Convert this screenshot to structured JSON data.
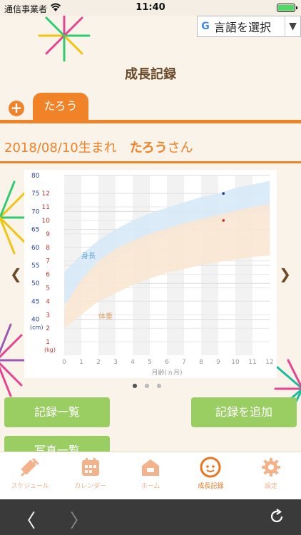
{
  "status": {
    "carrier": "通信事業者",
    "time": "11:40"
  },
  "translate": {
    "label": "言語を選択"
  },
  "page": {
    "title": "成長記録"
  },
  "tabs": {
    "child_tab": "たろう"
  },
  "child": {
    "birth_text": "2018/08/10生まれ",
    "name": "たろう",
    "suffix": "さん"
  },
  "chart_data": {
    "type": "area",
    "xlabel": "月齢(ヵ月)",
    "x_ticks": [
      0,
      1,
      2,
      3,
      4,
      5,
      6,
      7,
      8,
      9,
      10,
      11,
      12
    ],
    "xlim": [
      0,
      12
    ],
    "height_axis": {
      "unit": "(cm)",
      "ticks": [
        40,
        45,
        50,
        55,
        60,
        65,
        70,
        75,
        80
      ],
      "ylim": [
        30,
        80
      ]
    },
    "weight_axis": {
      "unit": "(kg)",
      "ticks": [
        1,
        2,
        3,
        4,
        5,
        6,
        7,
        8,
        9,
        10,
        11,
        12
      ],
      "ylim": [
        0,
        13.33
      ]
    },
    "series": [
      {
        "name": "身長",
        "color": "#d7e9f7",
        "x": [
          0,
          1,
          2,
          3,
          4,
          5,
          6,
          7,
          8,
          9,
          10,
          11,
          12
        ],
        "lower": [
          44,
          50,
          54,
          57,
          59.5,
          61.5,
          63.5,
          65,
          66.5,
          67.5,
          68.5,
          69.5,
          70.5
        ],
        "upper": [
          53,
          58,
          62,
          65,
          67.5,
          69.5,
          71,
          72.5,
          74,
          75,
          76.5,
          77.5,
          78.5
        ],
        "points": [
          {
            "x": 9.3,
            "y": 75
          }
        ]
      },
      {
        "name": "体重",
        "color": "#f8e7d1",
        "x": [
          0,
          1,
          2,
          3,
          4,
          5,
          6,
          7,
          8,
          9,
          10,
          11,
          12
        ],
        "lower": [
          2,
          3,
          4,
          4.6,
          5.2,
          5.7,
          6.1,
          6.4,
          6.7,
          6.9,
          7.1,
          7.3,
          7.4
        ],
        "upper": [
          3.6,
          5.6,
          7,
          7.9,
          8.5,
          9,
          9.4,
          9.8,
          10.1,
          10.4,
          10.7,
          11,
          11.2
        ],
        "points": [
          {
            "x": 9.3,
            "y": 10
          }
        ]
      }
    ]
  },
  "buttons": {
    "records": "記録一覧",
    "add": "記録を追加",
    "photos": "写真一覧"
  },
  "tabbar": {
    "schedule": "スケジュール",
    "calendar": "カレンダー",
    "home": "ホーム",
    "growth": "成長記録",
    "settings": "設定"
  }
}
